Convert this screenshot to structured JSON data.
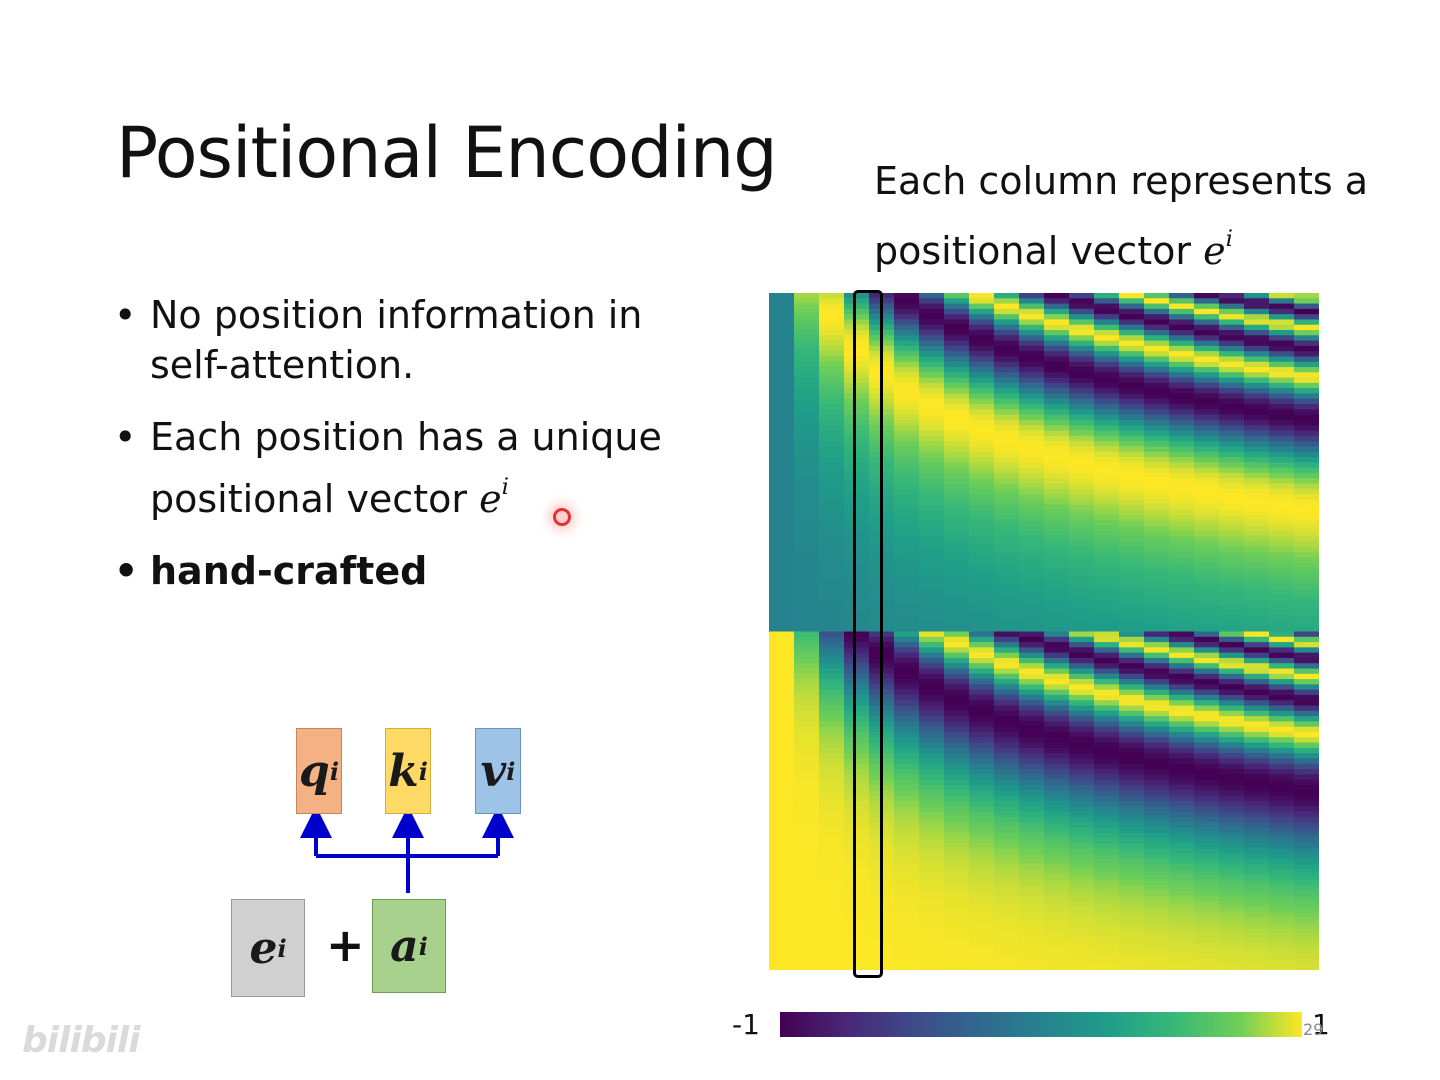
{
  "slide": {
    "title": "Positional Encoding",
    "caption_text": "Each column represents a positional vector",
    "caption_symbol": "e",
    "caption_sup": "i",
    "bullets": [
      {
        "text": "No position information in self-attention.",
        "bold": false
      },
      {
        "text": "Each position has a unique positional vector",
        "symbol": "e",
        "sup": "i",
        "bold": false
      },
      {
        "text": "hand-crafted",
        "bold": true
      }
    ],
    "bullet_glyph": "•"
  },
  "diagram": {
    "q": {
      "letter": "q",
      "sup": "i",
      "color": "#f4b183"
    },
    "k": {
      "letter": "k",
      "sup": "i",
      "color": "#ffd966"
    },
    "v": {
      "letter": "v",
      "sup": "i",
      "color": "#9dc3e6"
    },
    "e": {
      "letter": "e",
      "sup": "i",
      "color": "#d0d0d0"
    },
    "a": {
      "letter": "a",
      "sup": "i",
      "color": "#a9d18e"
    },
    "plus": "+",
    "arrow_color": "#0000cc"
  },
  "chart_data": {
    "type": "heatmap",
    "colormap": "viridis",
    "colorbar": {
      "min_label": "-1",
      "max_label": "1",
      "range": [
        -1,
        1
      ]
    },
    "description_series": "sinusoidal positional encoding: top half sin, bottom half cos",
    "highlighted_column": 3
  },
  "page_number": "29",
  "watermark": "bilibili"
}
